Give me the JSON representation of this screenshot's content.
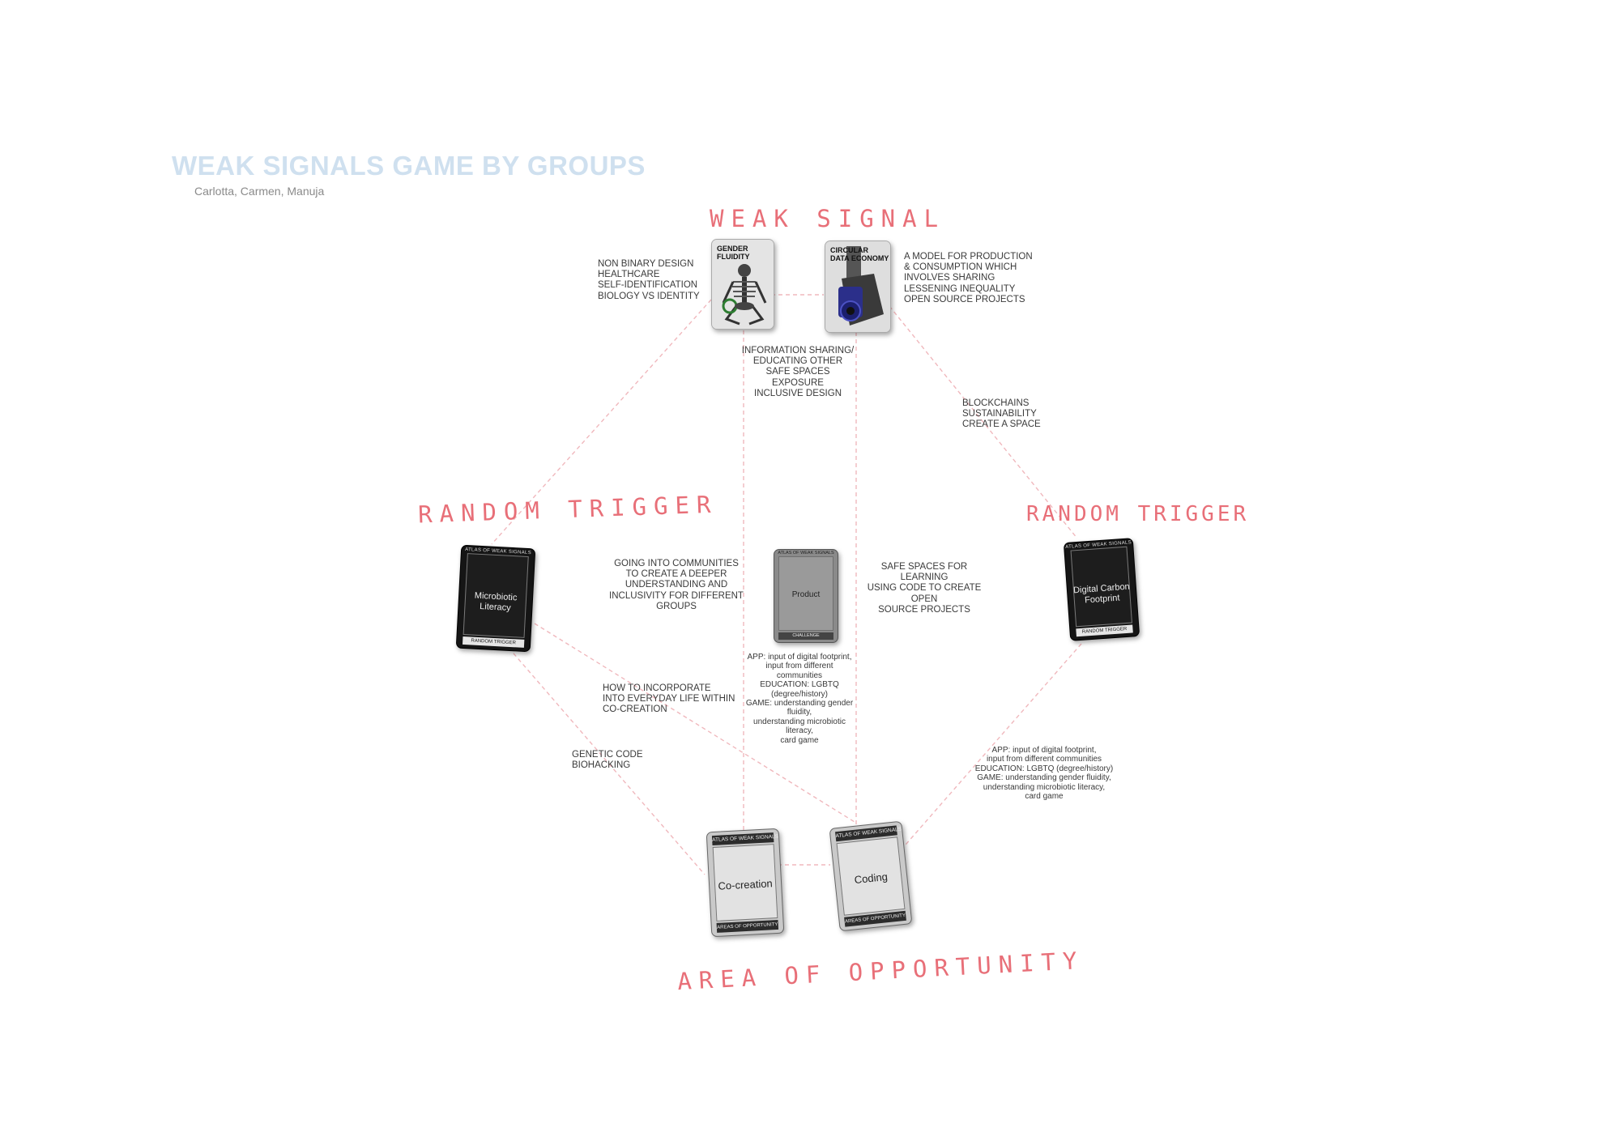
{
  "title": "WEAK SIGNALS GAME BY GROUPS",
  "authors": "Carlotta, Carmen, Manuja",
  "section_labels": {
    "weak_signal": "WEAK SIGNAL",
    "random_trigger_left": "RANDOM TRIGGER",
    "random_trigger_right": "RANDOM TRIGGER",
    "area_of_opportunity": "AREA OF OPPORTUNITY"
  },
  "cards": {
    "gender_fluidity": {
      "title": "GENDER\nFLUIDITY"
    },
    "circular_data_economy": {
      "title": "CIRCULAR\nDATA ECONOMY"
    },
    "microbiotic_literacy": {
      "header": "ATLAS OF WEAK SIGNALS",
      "title": "Microbiotic Literacy",
      "footer": "RANDOM TRIGGER"
    },
    "product": {
      "header": "ATLAS OF WEAK SIGNALS",
      "title": "Product",
      "footer": "CHALLENGE"
    },
    "digital_carbon_footprint": {
      "header": "ATLAS OF WEAK SIGNALS",
      "title": "Digital Carbon Footprint",
      "footer": "RANDOM TRIGGER"
    },
    "co_creation": {
      "header": "ATLAS OF WEAK SIGNALS",
      "title": "Co-creation",
      "footer": "AREAS OF OPPORTUNITY"
    },
    "coding": {
      "header": "ATLAS OF WEAK SIGNALS",
      "title": "Coding",
      "footer": "AREAS OF OPPORTUNITY"
    }
  },
  "notes": {
    "non_binary": "NON BINARY DESIGN\nHEALTHCARE\nSELF-IDENTIFICATION\nBIOLOGY VS IDENTITY",
    "production_model": "A MODEL FOR PRODUCTION\n& CONSUMPTION WHICH\nINVOLVES SHARING\nLESSENING INEQUALITY\nOPEN SOURCE PROJECTS",
    "information_sharing": "INFORMATION SHARING/\nEDUCATING OTHER\nSAFE SPACES\nEXPOSURE\nINCLUSIVE DESIGN",
    "blockchains": "BLOCKCHAINS\nSUSTAINABILITY\nCREATE A SPACE",
    "communities": "GOING INTO COMMUNITIES\nTO CREATE A DEEPER\nUNDERSTANDING AND\nINCLUSIVITY FOR DIFFERENT\nGROUPS",
    "safe_spaces": "SAFE SPACES FOR LEARNING\nUSING CODE TO CREATE OPEN\nSOURCE PROJECTS",
    "app_center": "APP: input of digital footprint,\ninput from different\ncommunities\nEDUCATION: LGBTQ\n(degree/history)\nGAME: understanding gender\nfluidity,\nunderstanding microbiotic\nliteracy,\ncard game",
    "incorporate": "HOW TO INCORPORATE\nINTO EVERYDAY LIFE WITHIN\nCO-CREATION",
    "genetic_code": "GENETIC CODE\nBIOHACKING",
    "app_right": "APP: input of digital footprint,\ninput from different communities\nEDUCATION: LGBTQ (degree/history)\nGAME: understanding gender fluidity,\nunderstanding microbiotic literacy,\ncard game"
  },
  "colors": {
    "title": "#cfe0ef",
    "handwriting": "#e86f78",
    "connector": "#f0b8bd"
  }
}
